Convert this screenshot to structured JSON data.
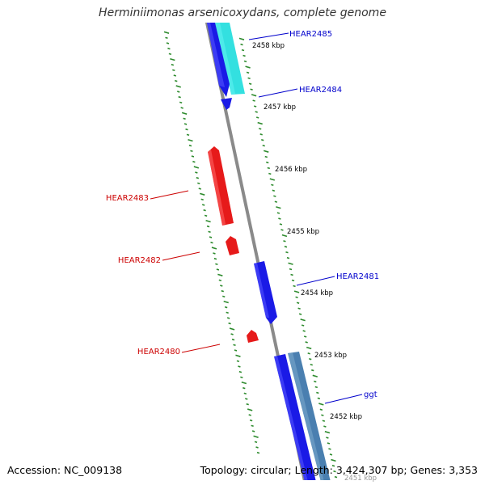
{
  "title": "Herminiimonas arsenicoxydans, complete genome",
  "footer": {
    "accession": "Accession: NC_009138",
    "summary": "Topology: circular; Length: 3,424,307 bp; Genes: 3,353"
  },
  "colors": {
    "background": "#ffffff",
    "backbone": "#8a8a8a",
    "tick": "#2e8b2e",
    "forward_gene": "#1a1ae6",
    "reverse_gene": "#e61a1a",
    "forward_label": "#0000cc",
    "reverse_label": "#cc0000",
    "cyan_feature": "#33e0e0",
    "steel_feature": "#4a7fb0"
  },
  "ticks": [
    {
      "label": "2458 kbp"
    },
    {
      "label": "2457 kbp"
    },
    {
      "label": "2456 kbp"
    },
    {
      "label": "2455 kbp"
    },
    {
      "label": "2454 kbp"
    },
    {
      "label": "2453 kbp"
    },
    {
      "label": "2452 kbp"
    },
    {
      "label": "2451 kbp"
    }
  ],
  "genes": [
    {
      "name": "HEAR2485",
      "strand": "forward"
    },
    {
      "name": "HEAR2484",
      "strand": "forward"
    },
    {
      "name": "HEAR2483",
      "strand": "reverse"
    },
    {
      "name": "HEAR2482",
      "strand": "reverse"
    },
    {
      "name": "HEAR2481",
      "strand": "forward"
    },
    {
      "name": "HEAR2480",
      "strand": "reverse"
    },
    {
      "name": "ggt",
      "strand": "forward"
    }
  ]
}
